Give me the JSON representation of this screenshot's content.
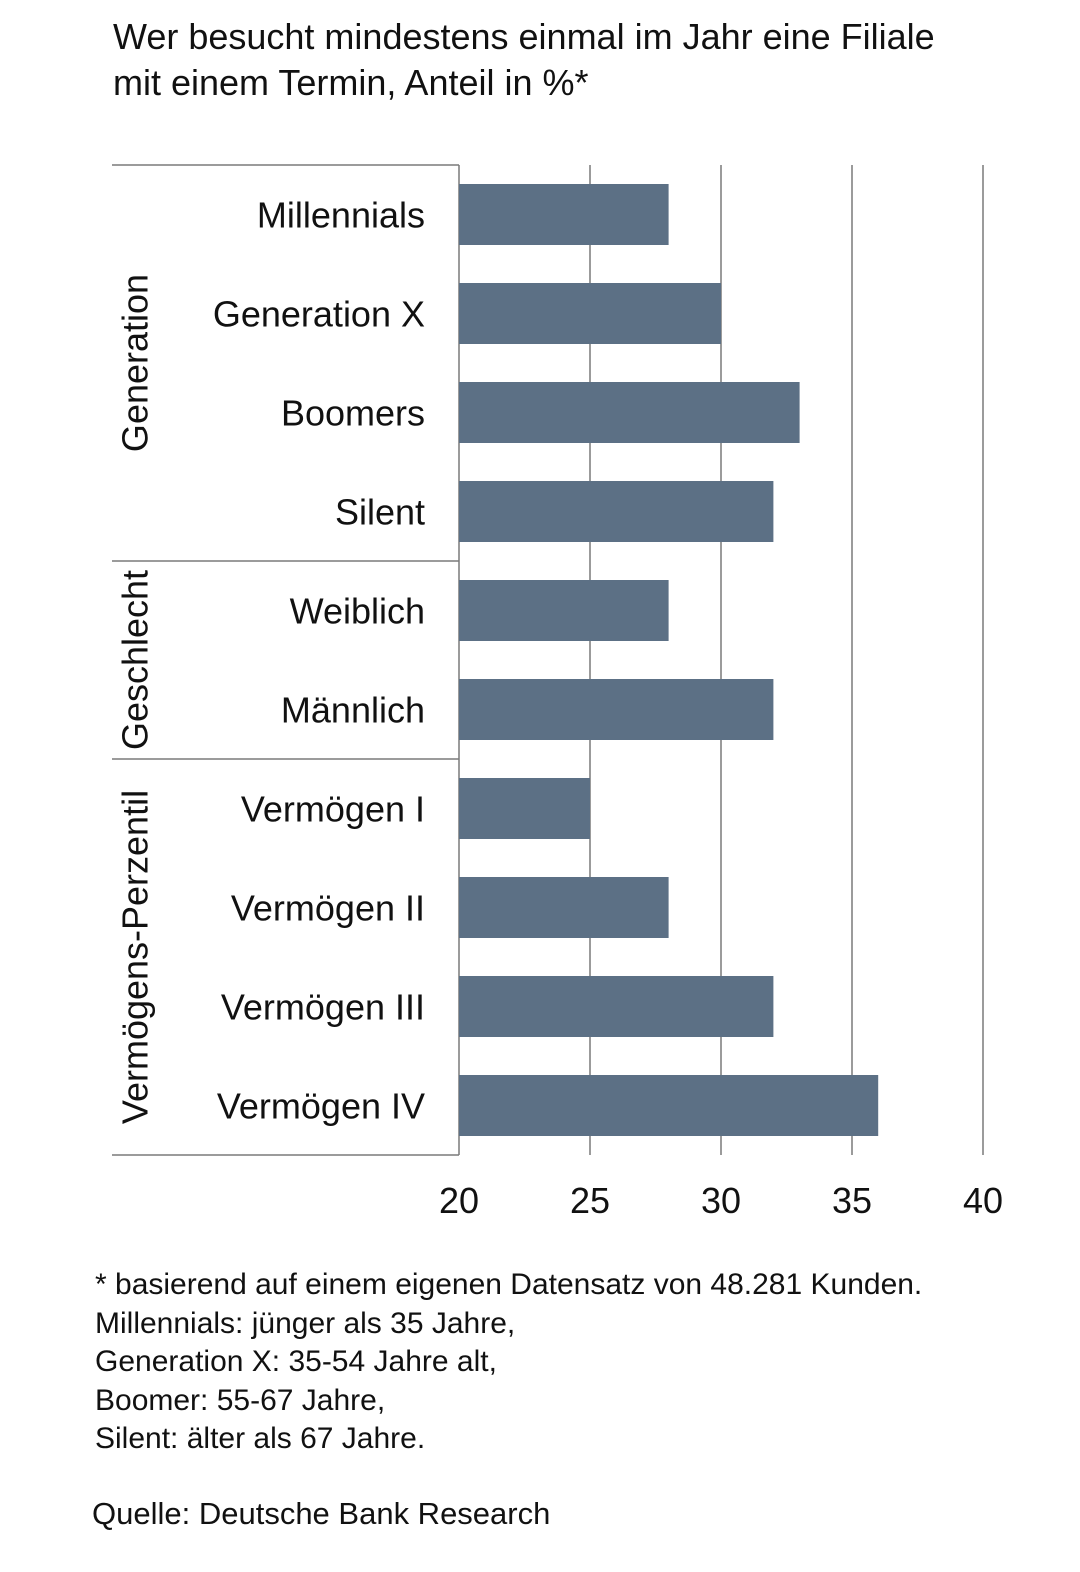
{
  "title_lines": [
    "Wer besucht mindestens einmal im Jahr eine Filiale",
    "mit einem Termin, Anteil in %*"
  ],
  "colors": {
    "bar": "#5c7085",
    "grid": "#7a7a7a",
    "text": "#111111"
  },
  "chart_data": {
    "type": "bar",
    "orientation": "horizontal",
    "title": "Wer besucht mindestens einmal im Jahr eine Filiale mit einem Termin, Anteil in %*",
    "categories": [
      "Millennials",
      "Generation X",
      "Boomers",
      "Silent",
      "Weiblich",
      "Männlich",
      "Vermögen I",
      "Vermögen II",
      "Vermögen III",
      "Vermögen IV"
    ],
    "values": [
      28,
      30,
      33,
      32,
      28,
      32,
      25,
      28,
      32,
      36
    ],
    "groups": [
      {
        "label": "Generation",
        "categories": [
          "Millennials",
          "Generation X",
          "Boomers",
          "Silent"
        ]
      },
      {
        "label": "Geschlecht",
        "categories": [
          "Weiblich",
          "Männlich"
        ]
      },
      {
        "label": "Vermögens-Perzentil",
        "categories": [
          "Vermögen I",
          "Vermögen II",
          "Vermögen III",
          "Vermögen IV"
        ]
      }
    ],
    "xlim": [
      20,
      40
    ],
    "xticks": [
      "20",
      "25",
      "30",
      "35",
      "40"
    ],
    "grid": true,
    "xlabel": "",
    "ylabel": ""
  },
  "footnotes": [
    "* basierend auf einem eigenen Datensatz von 48.281 Kunden.",
    "Millennials: jünger als 35 Jahre,",
    "Generation X: 35-54 Jahre alt,",
    "Boomer: 55-67 Jahre,",
    "Silent: älter als 67 Jahre."
  ],
  "source": "Quelle: Deutsche Bank Research"
}
